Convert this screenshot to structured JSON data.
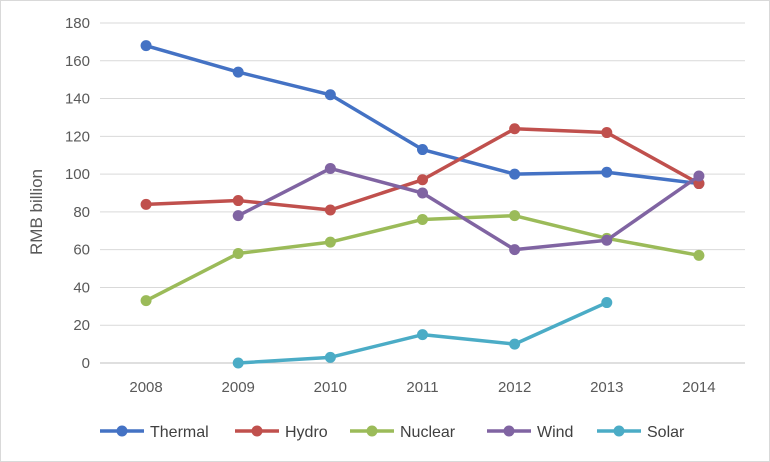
{
  "chart_data": {
    "type": "line",
    "title": "",
    "xlabel": "",
    "ylabel": "RMB billion",
    "categories": [
      "2008",
      "2009",
      "2010",
      "2011",
      "2012",
      "2013",
      "2014"
    ],
    "ylim": [
      0,
      180
    ],
    "yticks": [
      0,
      20,
      40,
      60,
      80,
      100,
      120,
      140,
      160,
      180
    ],
    "grid": true,
    "legend": "bottom",
    "series": [
      {
        "name": "Thermal",
        "color": "#4472C4",
        "values": [
          168,
          154,
          142,
          113,
          100,
          101,
          95
        ]
      },
      {
        "name": "Hydro",
        "color": "#C0504D",
        "values": [
          84,
          86,
          81,
          97,
          124,
          122,
          95
        ]
      },
      {
        "name": "Nuclear",
        "color": "#9BBB59",
        "values": [
          33,
          58,
          64,
          76,
          78,
          66,
          57
        ]
      },
      {
        "name": "Wind",
        "color": "#8064A2",
        "values": [
          null,
          78,
          103,
          90,
          60,
          65,
          99
        ]
      },
      {
        "name": "Solar",
        "color": "#4BACC6",
        "values": [
          null,
          0,
          3,
          15,
          10,
          32,
          null
        ]
      }
    ]
  }
}
